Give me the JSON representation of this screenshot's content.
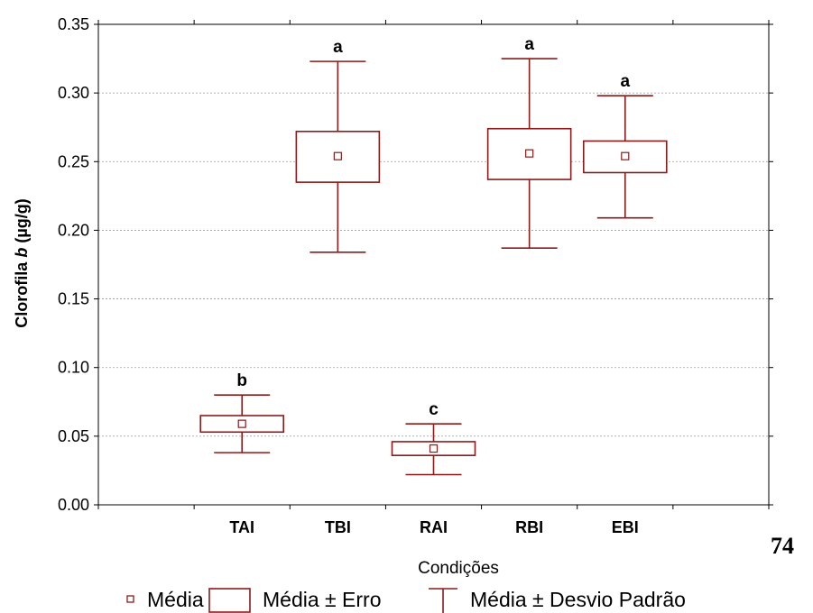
{
  "chart_data": {
    "type": "box",
    "xlabel": "Condições",
    "ylabel_prefix": "Clorofila ",
    "ylabel_italic": "b",
    "ylabel_suffix": " (µg/g)",
    "ylim": [
      0,
      0.35
    ],
    "yticks": [
      "0.00",
      "0.05",
      "0.10",
      "0.15",
      "0.20",
      "0.25",
      "0.30",
      "0.35"
    ],
    "grid": true,
    "color": "#8b1a1a",
    "categories": [
      "TAI",
      "TBI",
      "RAI",
      "RBI",
      "EBI"
    ],
    "series": [
      {
        "category": "TAI",
        "mean": 0.059,
        "se_low": 0.053,
        "se_high": 0.065,
        "sd_low": 0.038,
        "sd_high": 0.08,
        "letter": "b"
      },
      {
        "category": "TBI",
        "mean": 0.254,
        "se_low": 0.235,
        "se_high": 0.272,
        "sd_low": 0.184,
        "sd_high": 0.323,
        "letter": "a"
      },
      {
        "category": "RAI",
        "mean": 0.041,
        "se_low": 0.036,
        "se_high": 0.046,
        "sd_low": 0.022,
        "sd_high": 0.059,
        "letter": "c"
      },
      {
        "category": "RBI",
        "mean": 0.256,
        "se_low": 0.237,
        "se_high": 0.274,
        "sd_low": 0.187,
        "sd_high": 0.325,
        "letter": "a"
      },
      {
        "category": "EBI",
        "mean": 0.254,
        "se_low": 0.242,
        "se_high": 0.265,
        "sd_low": 0.209,
        "sd_high": 0.298,
        "letter": "a"
      }
    ],
    "legend": {
      "mean_label": "Média",
      "se_label": "Média ± Erro",
      "sd_label": "Média ± Desvio Padrão"
    }
  },
  "page_number": "74"
}
